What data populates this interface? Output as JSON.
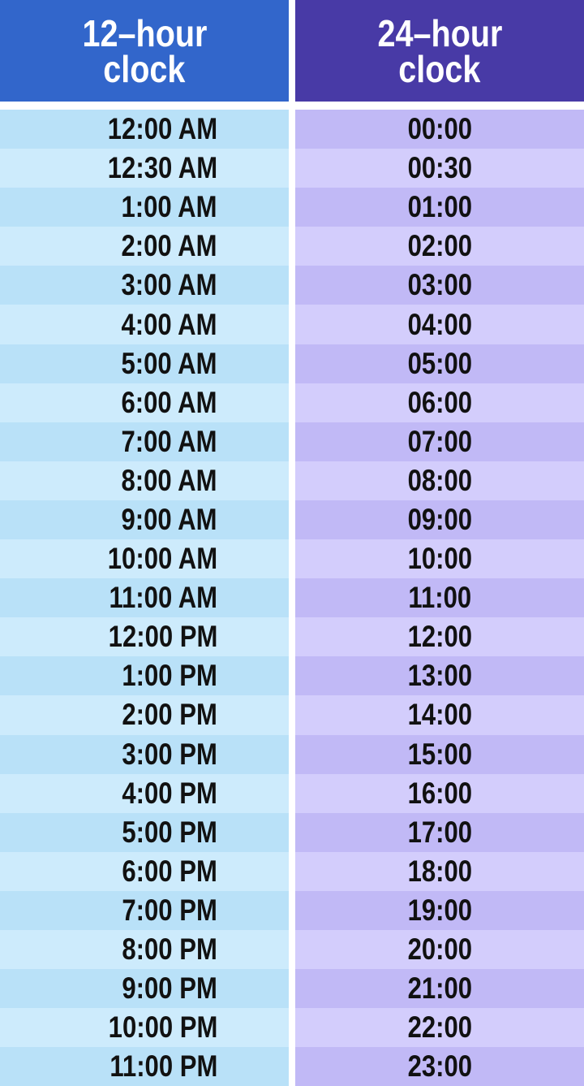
{
  "headers": {
    "left": [
      "12–hour",
      "clock"
    ],
    "right": [
      "24–hour",
      "clock"
    ]
  },
  "colors": {
    "left_header": "#3266cb",
    "right_header": "#483aa6",
    "left_rows": [
      "#b9e1f8",
      "#cdebfc"
    ],
    "right_rows": [
      "#c1b9f6",
      "#d3cdfc"
    ]
  },
  "rows": [
    {
      "h12": "12:00 AM",
      "h24": "00:00"
    },
    {
      "h12": "12:30 AM",
      "h24": "00:30"
    },
    {
      "h12": "1:00 AM",
      "h24": "01:00"
    },
    {
      "h12": "2:00 AM",
      "h24": "02:00"
    },
    {
      "h12": "3:00 AM",
      "h24": "03:00"
    },
    {
      "h12": "4:00 AM",
      "h24": "04:00"
    },
    {
      "h12": "5:00 AM",
      "h24": "05:00"
    },
    {
      "h12": "6:00 AM",
      "h24": "06:00"
    },
    {
      "h12": "7:00 AM",
      "h24": "07:00"
    },
    {
      "h12": "8:00 AM",
      "h24": "08:00"
    },
    {
      "h12": "9:00 AM",
      "h24": "09:00"
    },
    {
      "h12": "10:00 AM",
      "h24": "10:00"
    },
    {
      "h12": "11:00 AM",
      "h24": "11:00"
    },
    {
      "h12": "12:00 PM",
      "h24": "12:00"
    },
    {
      "h12": "1:00 PM",
      "h24": "13:00"
    },
    {
      "h12": "2:00 PM",
      "h24": "14:00"
    },
    {
      "h12": "3:00 PM",
      "h24": "15:00"
    },
    {
      "h12": "4:00 PM",
      "h24": "16:00"
    },
    {
      "h12": "5:00 PM",
      "h24": "17:00"
    },
    {
      "h12": "6:00 PM",
      "h24": "18:00"
    },
    {
      "h12": "7:00 PM",
      "h24": "19:00"
    },
    {
      "h12": "8:00 PM",
      "h24": "20:00"
    },
    {
      "h12": "9:00 PM",
      "h24": "21:00"
    },
    {
      "h12": "10:00 PM",
      "h24": "22:00"
    },
    {
      "h12": "11:00 PM",
      "h24": "23:00"
    }
  ]
}
